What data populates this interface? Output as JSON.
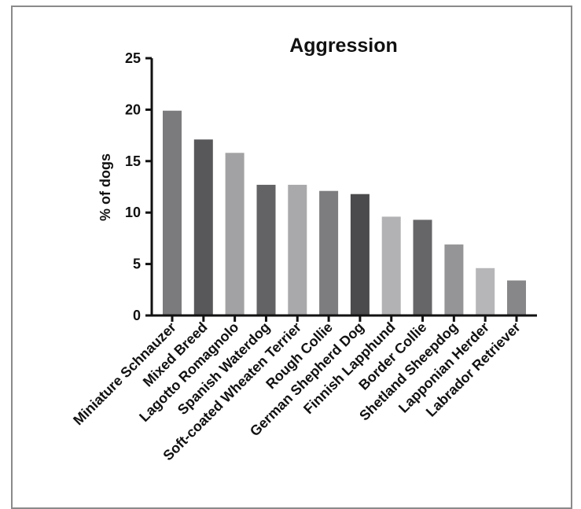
{
  "chart_data": {
    "type": "bar",
    "title": "Aggression",
    "xlabel": "",
    "ylabel": "% of dogs",
    "ylim": [
      0,
      25
    ],
    "yticks": [
      0,
      5,
      10,
      15,
      20,
      25
    ],
    "grid": false,
    "legend": "none",
    "categories": [
      "Miniature Schnauzer",
      "Mixed Breed",
      "Lagotto Romagnolo",
      "Spanish Waterdog",
      "Soft-coated Wheaten Terrier",
      "Rough Collie",
      "German Shepherd Dog",
      "Finnish Lapphund",
      "Border Collie",
      "Shetland Sheepdog",
      "Lapponian Herder",
      "Labrador Retriever"
    ],
    "values": [
      19.9,
      17.1,
      15.8,
      12.7,
      12.7,
      12.1,
      11.8,
      9.6,
      9.3,
      6.9,
      4.6,
      3.4
    ],
    "colors": [
      "#7b7b7d",
      "#58585a",
      "#a2a2a4",
      "#636365",
      "#a9a9ab",
      "#7d7d7f",
      "#4b4b4d",
      "#b2b2b4",
      "#666668",
      "#959597",
      "#b6b6b8",
      "#878789"
    ]
  }
}
